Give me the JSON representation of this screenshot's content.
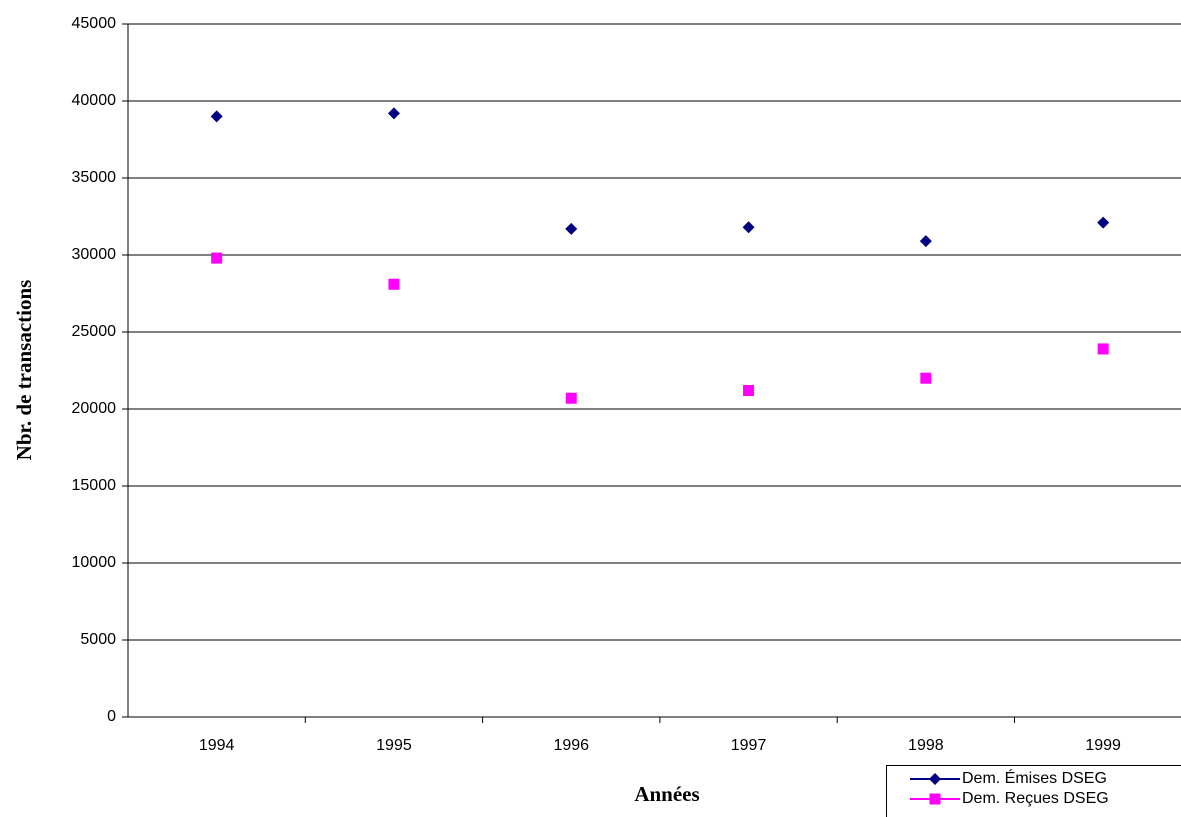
{
  "chart_data": {
    "type": "line",
    "xlabel": "Années",
    "ylabel": "Nbr. de transactions",
    "categories": [
      "1994",
      "1995",
      "1996",
      "1997",
      "1998",
      "1999"
    ],
    "series": [
      {
        "name": "Dem. Émises DSEG",
        "color": "#000080",
        "marker": "diamond",
        "values": [
          39000,
          39200,
          31700,
          31800,
          30900,
          32100
        ]
      },
      {
        "name": "Dem. Reçues DSEG",
        "color": "#ff00ff",
        "marker": "square",
        "values": [
          29800,
          28100,
          20700,
          21200,
          22000,
          23900
        ]
      }
    ],
    "ylim": [
      0,
      45000
    ],
    "yticks": [
      0,
      5000,
      10000,
      15000,
      20000,
      25000,
      30000,
      35000,
      40000,
      45000
    ],
    "grid": true,
    "legend": "bottom-right"
  }
}
